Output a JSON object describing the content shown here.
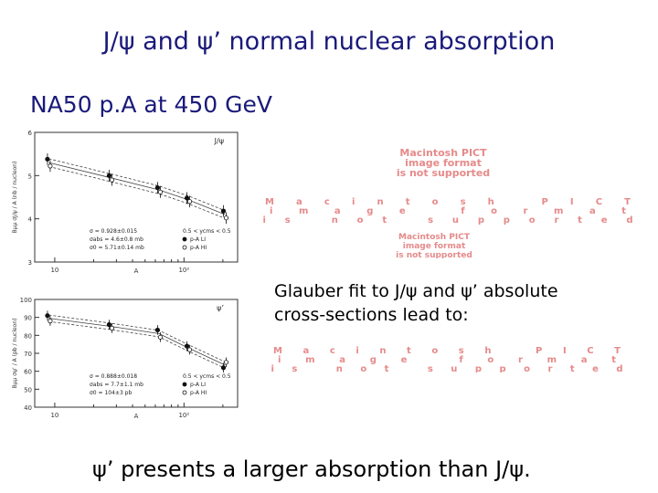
{
  "slide": {
    "title": "J/ψ and ψ’ normal nuclear absorption",
    "subtitle": "NA50  p.A at 450 GeV",
    "glauber_line1": "Glauber fit to J/ψ and ψ’ absolute",
    "glauber_line2": "cross-sections lead to:",
    "conclusion": "ψ’ presents a larger absorption than J/ψ.",
    "pict_text": [
      "Macintosh PICT",
      "image format",
      "is not supported"
    ]
  },
  "chart_data": [
    {
      "type": "scatter",
      "title": "J/ψ",
      "ylabel": "Bμμ σJ/ψ / A (nb / nucleon)",
      "xlabel": "A",
      "x_log": true,
      "ylim": [
        3,
        6
      ],
      "yticks": [
        "3",
        "4",
        "5",
        "6"
      ],
      "xticks": [
        "10",
        "10²"
      ],
      "x": [
        9,
        27,
        64,
        108,
        207
      ],
      "series": [
        {
          "name": "p-A LI",
          "values": [
            5.38,
            5.0,
            4.72,
            4.48,
            4.18
          ]
        },
        {
          "name": "p-A HI",
          "values": [
            5.22,
            4.9,
            4.62,
            4.4,
            4.02
          ]
        }
      ],
      "annotations": [
        "σ = 0.928±0.015",
        "σabs = 4.6±0.8 mb",
        "σ0 = 5.71±0.14 mb",
        "0.5 < ycms < 0.5"
      ]
    },
    {
      "type": "scatter",
      "title": "ψ’",
      "ylabel": "Bμμ σψ’ / A (pb / nucleon)",
      "xlabel": "A",
      "x_log": true,
      "ylim": [
        40,
        100
      ],
      "yticks": [
        "40",
        "50",
        "60",
        "70",
        "80",
        "90",
        "100"
      ],
      "xticks": [
        "10",
        "10²"
      ],
      "x": [
        9,
        27,
        64,
        108,
        207
      ],
      "series": [
        {
          "name": "p-A LI",
          "values": [
            91,
            86,
            83,
            74,
            62
          ]
        },
        {
          "name": "p-A HI",
          "values": [
            88,
            84,
            79,
            72,
            65
          ]
        }
      ],
      "annotations": [
        "σ = 0.888±0.018",
        "σabs = 7.7±1.1 mb",
        "σ0 = 104±3 pb",
        "0.5 < ycms < 0.5"
      ]
    }
  ]
}
